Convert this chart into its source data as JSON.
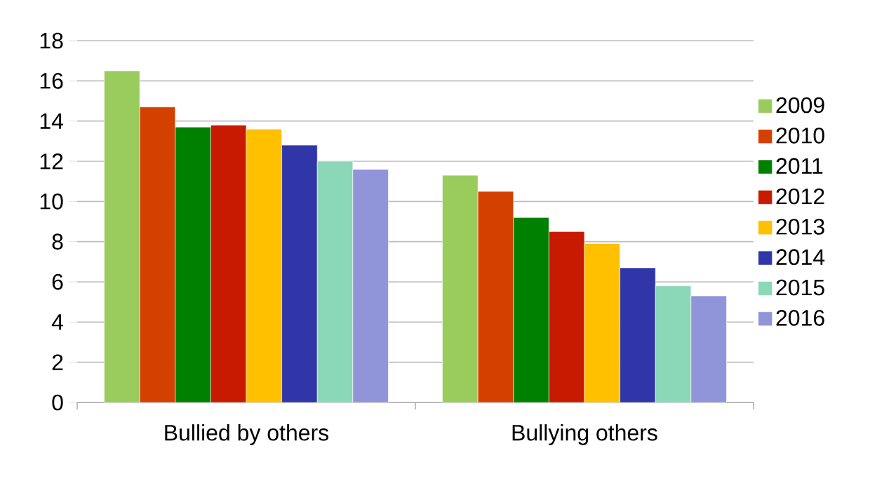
{
  "chart_data": {
    "type": "bar",
    "categories": [
      "Bullied by others",
      "Bullying others"
    ],
    "series": [
      {
        "name": "2009",
        "color": "#99cc5c",
        "values": [
          16.5,
          11.3
        ]
      },
      {
        "name": "2010",
        "color": "#d44000",
        "values": [
          14.7,
          10.5
        ]
      },
      {
        "name": "2011",
        "color": "#008000",
        "values": [
          13.7,
          9.2
        ]
      },
      {
        "name": "2012",
        "color": "#c81a00",
        "values": [
          13.8,
          8.5
        ]
      },
      {
        "name": "2013",
        "color": "#ffc000",
        "values": [
          13.6,
          7.9
        ]
      },
      {
        "name": "2014",
        "color": "#3035a8",
        "values": [
          12.8,
          6.7
        ]
      },
      {
        "name": "2015",
        "color": "#8ad8b8",
        "values": [
          12.0,
          5.8
        ]
      },
      {
        "name": "2016",
        "color": "#9095da",
        "values": [
          11.6,
          5.3
        ]
      }
    ],
    "ylim": [
      0,
      18
    ],
    "yticks": [
      0,
      2,
      4,
      6,
      8,
      10,
      12,
      14,
      16,
      18
    ],
    "grid": "y",
    "legend": "right"
  }
}
